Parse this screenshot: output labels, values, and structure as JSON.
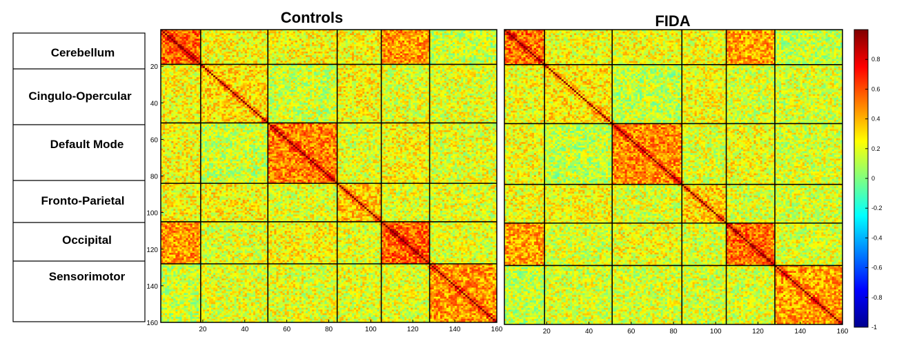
{
  "chart_data": {
    "type": "heatmap",
    "panels": [
      {
        "title": "Controls"
      },
      {
        "title": "FIDA"
      }
    ],
    "matrix_size": 160,
    "network_boundaries": [
      19,
      51,
      84,
      105,
      128
    ],
    "networks": [
      "Cerebellum",
      "Cingulo-Opercular",
      "Default Mode",
      "Fronto-Parietal",
      "Occipital",
      "Sensorimotor"
    ],
    "x_ticks": [
      20,
      40,
      60,
      80,
      100,
      120,
      140,
      160
    ],
    "y_ticks": [
      20,
      40,
      60,
      80,
      100,
      120,
      140,
      160
    ],
    "colorbar": {
      "min": -1,
      "max": 1,
      "ticks": [
        0.8,
        0.6,
        0.4,
        0.2,
        0,
        -0.2,
        -0.4,
        -0.6,
        -0.8,
        -1
      ],
      "tick_labels": [
        "0.8",
        "0.6",
        "0.4",
        "0.2",
        "0",
        "-0.2",
        "-0.4",
        "-0.6",
        "-0.8",
        "-1"
      ],
      "colormap": "jet",
      "colors": [
        "#00008f",
        "#0000ff",
        "#0080ff",
        "#00ffff",
        "#80ff80",
        "#ffff00",
        "#ff8000",
        "#ff0000",
        "#800000"
      ]
    },
    "approx_block_means": [
      [
        0.55,
        0.25,
        0.25,
        0.25,
        0.45,
        0.15
      ],
      [
        0.25,
        0.3,
        0.15,
        0.25,
        0.2,
        0.2
      ],
      [
        0.25,
        0.15,
        0.5,
        0.2,
        0.25,
        0.2
      ],
      [
        0.25,
        0.25,
        0.2,
        0.35,
        0.2,
        0.2
      ],
      [
        0.45,
        0.2,
        0.25,
        0.2,
        0.55,
        0.2
      ],
      [
        0.15,
        0.2,
        0.2,
        0.2,
        0.2,
        0.45
      ]
    ],
    "diagonal_value": 1
  }
}
